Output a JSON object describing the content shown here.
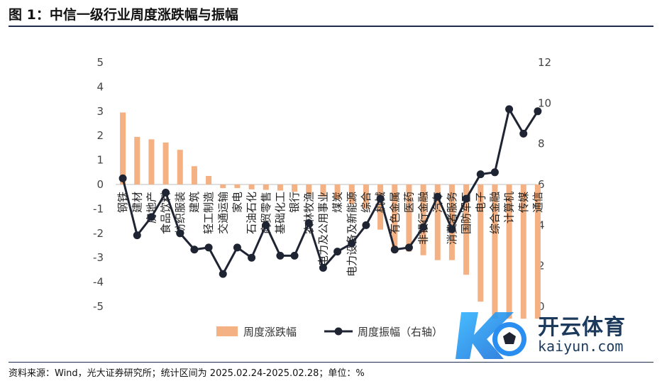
{
  "title": "图 1：中信一级行业周度涨跌幅与振幅",
  "source": "资料来源：Wind，光大证券研究所；统计区间为 2025.02.24-2025.02.28；单位：%",
  "watermark": {
    "brand": "开云体育",
    "url": "kaiyun.com"
  },
  "colors": {
    "bar": "#F4B183",
    "line": "#1F2433",
    "axis_text": "#444444"
  },
  "chart_data": {
    "type": "bar+line",
    "categories": [
      "钢铁",
      "建材",
      "房地产",
      "食品饮料",
      "纺织服装",
      "建筑",
      "轻工制造",
      "交通运输",
      "家电",
      "石油石化",
      "商贸零售",
      "基础化工",
      "银行",
      "农林牧渔",
      "电力及公用事业",
      "煤炭",
      "电力设备及新能源",
      "综合",
      "机械",
      "有色金属",
      "医药",
      "非银行金融",
      "汽车",
      "消费者服务",
      "国防军工",
      "电子",
      "综合金融",
      "计算机",
      "传媒",
      "通信"
    ],
    "series": [
      {
        "name": "周度涨跌幅",
        "axis": "left",
        "type": "bar",
        "values": [
          2.95,
          1.95,
          1.85,
          1.72,
          1.42,
          0.75,
          0.35,
          -0.15,
          -0.15,
          -0.2,
          -0.22,
          -0.25,
          -0.3,
          -0.4,
          -0.5,
          -0.6,
          -0.8,
          -1.0,
          -1.85,
          -2.8,
          -2.75,
          -2.9,
          -3.1,
          -3.1,
          -3.7,
          -4.8,
          -5.5,
          -5.5,
          -5.5,
          -5.5
        ]
      },
      {
        "name": "周度振幅（右轴）",
        "axis": "right",
        "type": "line",
        "values": [
          6.3,
          3.5,
          4.4,
          5.6,
          3.6,
          2.8,
          2.9,
          1.6,
          2.9,
          2.4,
          4.0,
          2.5,
          2.5,
          4.1,
          1.9,
          2.7,
          3.1,
          4.0,
          5.3,
          2.8,
          2.9,
          3.9,
          5.4,
          3.8,
          5.3,
          6.5,
          6.6,
          9.7,
          8.5,
          9.6
        ]
      }
    ],
    "left_axis": {
      "min": -5,
      "max": 5,
      "ticks": [
        5,
        4,
        3,
        2,
        1,
        0,
        -1,
        -2,
        -3,
        -4,
        -5
      ]
    },
    "right_axis": {
      "min": 0,
      "max": 12,
      "ticks": [
        12,
        10,
        8,
        6,
        4,
        2,
        0
      ]
    },
    "legend": {
      "position": "bottom",
      "items": [
        "周度涨跌幅",
        "周度振幅（右轴）"
      ]
    },
    "grid": false
  }
}
